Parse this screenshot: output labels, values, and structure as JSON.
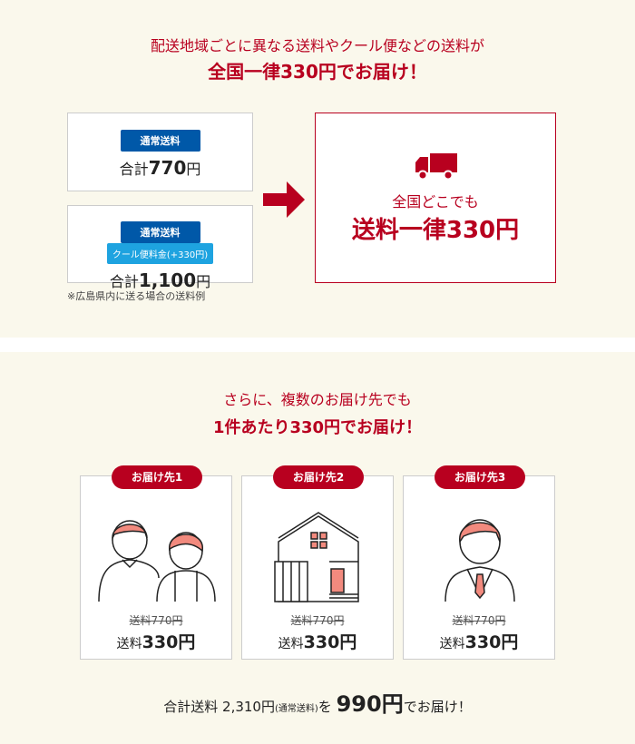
{
  "hero": {
    "line1": "配送地域ごとに異なる送料やクール便などの送料が",
    "line2": "全国一律330円でお届け！"
  },
  "example": {
    "box1": {
      "tag": "通常送料",
      "total_prefix": "合計",
      "total_value": "770",
      "total_unit": "円"
    },
    "box2": {
      "tag": "通常送料",
      "tag2": "クール便料金(+330円)",
      "total_prefix": "合計",
      "total_value": "1,100",
      "total_unit": "円"
    },
    "note": "※広島県内に送る場合の送料例",
    "result": {
      "icon": "truck-icon",
      "line1": "全国どこでも",
      "line2": "送料一律330円"
    }
  },
  "multi": {
    "line1": "さらに、複数のお届け先でも",
    "line2": "1件あたり330円でお届け！",
    "cards": [
      {
        "badge": "お届け先1",
        "illustration": "couple",
        "old": "送料770円",
        "new_prefix": "送料",
        "new_value": "330",
        "new_unit": "円"
      },
      {
        "badge": "お届け先2",
        "illustration": "house",
        "old": "送料770円",
        "new_prefix": "送料",
        "new_value": "330",
        "new_unit": "円"
      },
      {
        "badge": "お届け先3",
        "illustration": "businessman",
        "old": "送料770円",
        "new_prefix": "送料",
        "new_value": "330",
        "new_unit": "円"
      }
    ],
    "summary": {
      "a": "合計送料 2,310円",
      "b": "(通常送料)",
      "c": "を",
      "d": "990円",
      "e": "でお届け！"
    }
  },
  "colors": {
    "accent": "#b8001f",
    "blue": "#0058a8",
    "sky": "#1ea3e0",
    "background": "#faf8ec",
    "hair": "#f28a7e"
  }
}
